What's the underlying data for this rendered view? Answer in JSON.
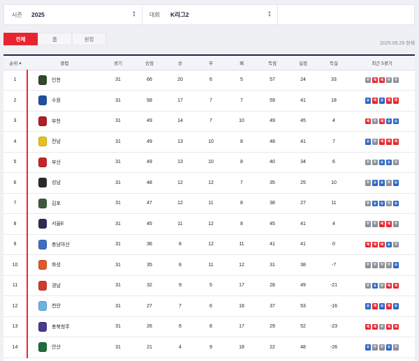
{
  "filters": {
    "season_label": "시즌",
    "season_value": "2025",
    "competition_label": "대회",
    "competition_value": "K리그2"
  },
  "tabs": [
    {
      "label": "전체",
      "active": true
    },
    {
      "label": "홈",
      "active": false
    },
    {
      "label": "원정",
      "active": false
    }
  ],
  "date_text": "2025.09.29 현재",
  "headers": {
    "rank": "순위 ▾",
    "club": "클럽",
    "played": "경기",
    "points": "승점",
    "wins": "승",
    "draws": "무",
    "losses": "패",
    "goals_for": "득점",
    "goals_against": "실점",
    "goal_diff": "득실",
    "form": "최근 5경기"
  },
  "form_labels": {
    "w": "승",
    "d": "무",
    "l": "패"
  },
  "rows": [
    {
      "rank": "1",
      "club": "인천",
      "emblem": "#2e4a2a",
      "played": "31",
      "points": "66",
      "wins": "20",
      "draws": "6",
      "losses": "5",
      "gf": "57",
      "ga": "24",
      "gd": "33",
      "form": [
        "d",
        "l",
        "l",
        "d",
        "d"
      ]
    },
    {
      "rank": "2",
      "club": "수원",
      "emblem": "#1f4fa3",
      "played": "31",
      "points": "58",
      "wins": "17",
      "draws": "7",
      "losses": "7",
      "gf": "59",
      "ga": "41",
      "gd": "18",
      "form": [
        "w",
        "l",
        "w",
        "l",
        "l"
      ]
    },
    {
      "rank": "3",
      "club": "부천",
      "emblem": "#b21e24",
      "played": "31",
      "points": "49",
      "wins": "14",
      "draws": "7",
      "losses": "10",
      "gf": "49",
      "ga": "45",
      "gd": "4",
      "form": [
        "l",
        "d",
        "l",
        "w",
        "w"
      ]
    },
    {
      "rank": "4",
      "club": "전남",
      "emblem": "#e3c21b",
      "played": "31",
      "points": "49",
      "wins": "13",
      "draws": "10",
      "losses": "8",
      "gf": "48",
      "ga": "41",
      "gd": "7",
      "form": [
        "w",
        "d",
        "l",
        "l",
        "l"
      ]
    },
    {
      "rank": "5",
      "club": "부산",
      "emblem": "#c8242b",
      "played": "31",
      "points": "49",
      "wins": "13",
      "draws": "10",
      "losses": "8",
      "gf": "40",
      "ga": "34",
      "gd": "6",
      "form": [
        "d",
        "d",
        "w",
        "w",
        "d"
      ]
    },
    {
      "rank": "6",
      "club": "성남",
      "emblem": "#2a2a2a",
      "played": "31",
      "points": "48",
      "wins": "12",
      "draws": "12",
      "losses": "7",
      "gf": "35",
      "ga": "25",
      "gd": "10",
      "form": [
        "d",
        "w",
        "w",
        "d",
        "w"
      ]
    },
    {
      "rank": "7",
      "club": "김포",
      "emblem": "#3d5a3a",
      "played": "31",
      "points": "47",
      "wins": "12",
      "draws": "11",
      "losses": "8",
      "gf": "38",
      "ga": "27",
      "gd": "11",
      "form": [
        "d",
        "w",
        "w",
        "d",
        "w"
      ]
    },
    {
      "rank": "8",
      "club": "서울E",
      "emblem": "#2b2d55",
      "played": "31",
      "points": "45",
      "wins": "11",
      "draws": "12",
      "losses": "8",
      "gf": "45",
      "ga": "41",
      "gd": "4",
      "form": [
        "d",
        "d",
        "l",
        "l",
        "d"
      ]
    },
    {
      "rank": "9",
      "club": "충남아산",
      "emblem": "#3f6fc4",
      "played": "31",
      "points": "36",
      "wins": "8",
      "draws": "12",
      "losses": "11",
      "gf": "41",
      "ga": "41",
      "gd": "0",
      "form": [
        "l",
        "l",
        "l",
        "w",
        "d"
      ]
    },
    {
      "rank": "10",
      "club": "화성",
      "emblem": "#e0582a",
      "played": "31",
      "points": "35",
      "wins": "8",
      "draws": "11",
      "losses": "12",
      "gf": "31",
      "ga": "38",
      "gd": "-7",
      "form": [
        "d",
        "d",
        "d",
        "d",
        "w"
      ]
    },
    {
      "rank": "11",
      "club": "경남",
      "emblem": "#d33a2e",
      "played": "31",
      "points": "32",
      "wins": "9",
      "draws": "5",
      "losses": "17",
      "gf": "28",
      "ga": "49",
      "gd": "-21",
      "form": [
        "d",
        "w",
        "d",
        "l",
        "l"
      ]
    },
    {
      "rank": "12",
      "club": "천안",
      "emblem": "#6bb3e0",
      "played": "31",
      "points": "27",
      "wins": "7",
      "draws": "6",
      "losses": "18",
      "gf": "37",
      "ga": "53",
      "gd": "-16",
      "form": [
        "w",
        "l",
        "w",
        "l",
        "w"
      ]
    },
    {
      "rank": "13",
      "club": "충북청주",
      "emblem": "#4a3a8a",
      "played": "31",
      "points": "26",
      "wins": "6",
      "draws": "8",
      "losses": "17",
      "gf": "29",
      "ga": "52",
      "gd": "-23",
      "form": [
        "l",
        "l",
        "d",
        "l",
        "l"
      ]
    },
    {
      "rank": "14",
      "club": "안산",
      "emblem": "#1f6b3a",
      "played": "31",
      "points": "21",
      "wins": "4",
      "draws": "9",
      "losses": "18",
      "gf": "22",
      "ga": "48",
      "gd": "-26",
      "form": [
        "w",
        "d",
        "d",
        "w",
        "d"
      ]
    }
  ]
}
